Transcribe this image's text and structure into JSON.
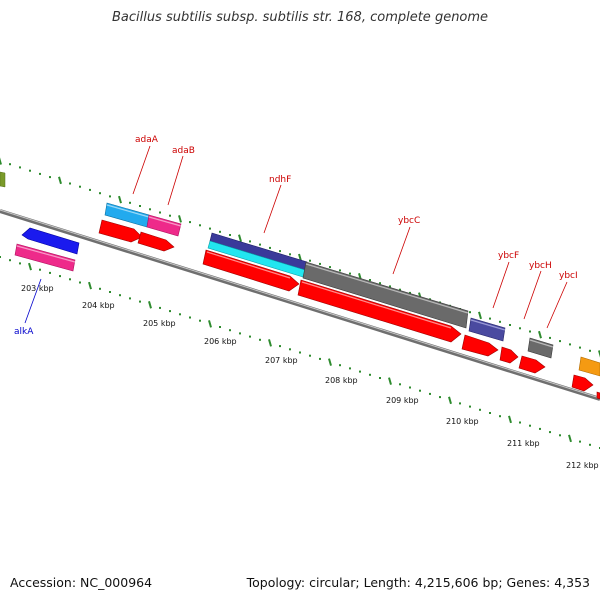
{
  "title": "Bacillus subtilis subsp. subtilis str. 168, complete genome",
  "footer": {
    "accession": "Accession: NC_000964",
    "summary": "Topology: circular; Length: 4,215,606 bp; Genes: 4,353"
  },
  "colors": {
    "backbone": "#8a8a8a",
    "tick_major": "#2e8b2e",
    "tick_minor": "#2e8b2e",
    "cds": "#ff0000",
    "label_red": "#cc0000",
    "label_blue": "#0000cc"
  },
  "diagram": {
    "position_labels": [
      "203 kbp",
      "204 kbp",
      "205 kbp",
      "206 kbp",
      "207 kbp",
      "208 kbp",
      "209 kbp",
      "210 kbp",
      "211 kbp",
      "212 kbp"
    ],
    "gene_labels": [
      {
        "id": "adaA",
        "text": "adaA",
        "color": "#cc0000"
      },
      {
        "id": "adaB",
        "text": "adaB",
        "color": "#cc0000"
      },
      {
        "id": "ndhF",
        "text": "ndhF",
        "color": "#cc0000"
      },
      {
        "id": "ybcC",
        "text": "ybcC",
        "color": "#cc0000"
      },
      {
        "id": "ybcF",
        "text": "ybcF",
        "color": "#cc0000"
      },
      {
        "id": "ybcH",
        "text": "ybcH",
        "color": "#cc0000"
      },
      {
        "id": "ybcI",
        "text": "ybcI",
        "color": "#cc0000"
      },
      {
        "id": "alkA",
        "text": "alkA",
        "color": "#0000cc"
      }
    ]
  }
}
